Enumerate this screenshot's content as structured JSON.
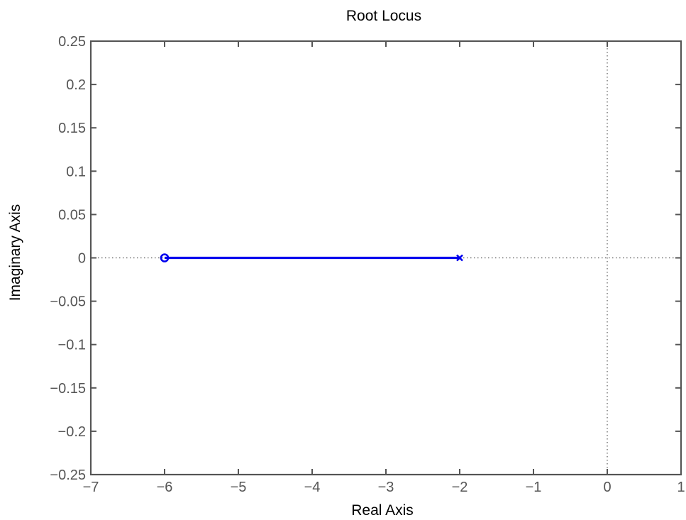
{
  "chart_data": {
    "type": "line",
    "title": "Root Locus",
    "xlabel": "Real Axis",
    "ylabel": "Imaginary Axis",
    "xlim": [
      -7,
      1
    ],
    "ylim": [
      -0.25,
      0.25
    ],
    "xticks": [
      -7,
      -6,
      -5,
      -4,
      -3,
      -2,
      -1,
      0,
      1
    ],
    "xtick_labels": [
      "−7",
      "−6",
      "−5",
      "−4",
      "−3",
      "−2",
      "−1",
      "0",
      "1"
    ],
    "yticks": [
      0.25,
      0.2,
      0.15,
      0.1,
      0.05,
      0,
      -0.05,
      -0.1,
      -0.15,
      -0.2,
      -0.25
    ],
    "ytick_labels": [
      "0.25",
      "0.2",
      "0.15",
      "0.1",
      "0.05",
      "0",
      "−0.05",
      "−0.1",
      "−0.15",
      "−0.2",
      "−0.25"
    ],
    "grid": false,
    "reference_lines": {
      "real_axis_y": 0,
      "imaginary_axis_x": 0,
      "style": "dotted"
    },
    "series": [
      {
        "x": [
          -2,
          -6
        ],
        "y": [
          0,
          0
        ],
        "color": "#0000ee"
      }
    ],
    "poles": [
      {
        "x": -2,
        "y": 0
      }
    ],
    "zeros": [
      {
        "x": -6,
        "y": 0
      }
    ],
    "colors": {
      "locus": "#0000ee",
      "axes_frame": "#555555",
      "reference": "#555555"
    }
  }
}
